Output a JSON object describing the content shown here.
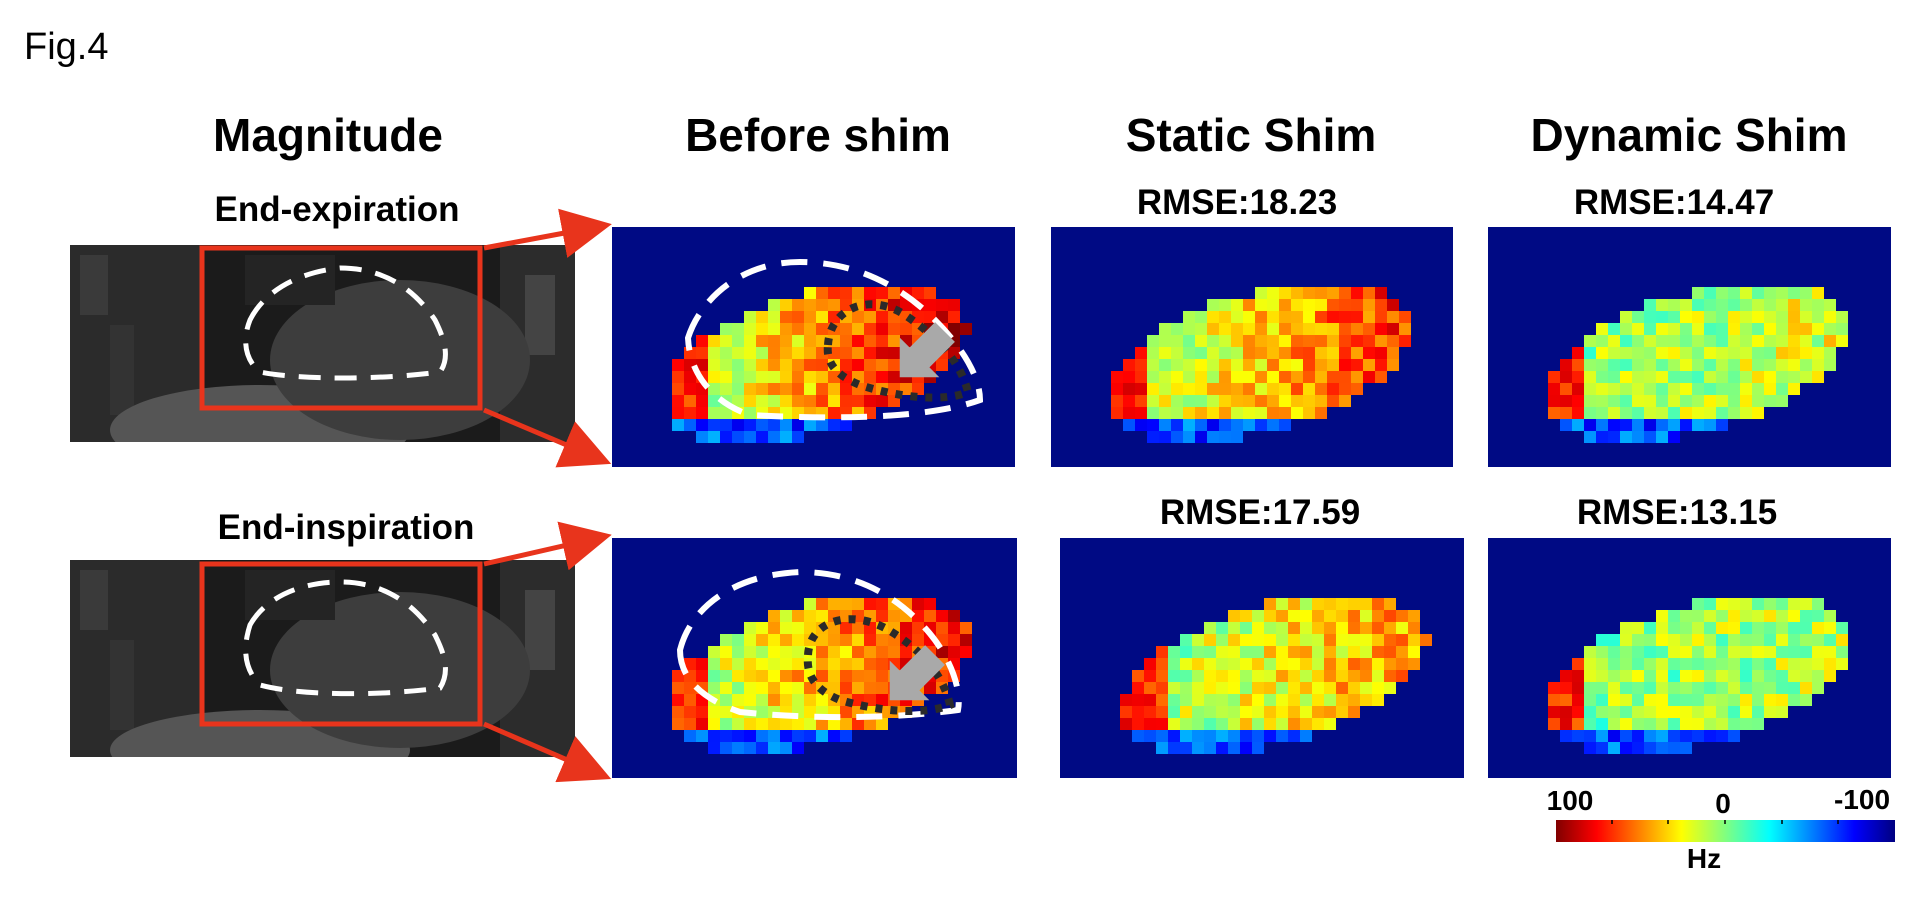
{
  "figure_label": "Fig.4",
  "columns": {
    "magnitude": "Magnitude",
    "before": "Before shim",
    "static": "Static Shim",
    "dynamic": "Dynamic Shim"
  },
  "rows": {
    "expiration": "End-expiration",
    "inspiration": "End-inspiration"
  },
  "rmse": {
    "static_expiration": "RMSE:18.23",
    "dynamic_expiration": "RMSE:14.47",
    "static_inspiration": "RMSE:17.59",
    "dynamic_inspiration": "RMSE:13.15"
  },
  "colorbar": {
    "max_label": "100",
    "mid_label": "0",
    "min_label": "-100",
    "unit": "Hz",
    "colormap": "jet"
  },
  "colors": {
    "map_background": "#000a84",
    "roi_box": "#e8341c",
    "arrow": "#a9a9a9",
    "contour_white": "#ffffff",
    "contour_dark": "#2a2a2a"
  }
}
